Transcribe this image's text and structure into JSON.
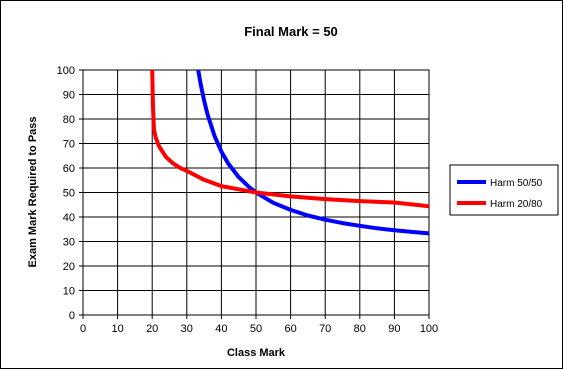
{
  "chart_data": {
    "type": "line",
    "title": "Final Mark = 50",
    "xlabel": "Class Mark",
    "ylabel": "Exam Mark Required to Pass",
    "xlim": [
      0,
      100
    ],
    "ylim": [
      0,
      100
    ],
    "xticks": [
      0,
      10,
      20,
      30,
      40,
      50,
      60,
      70,
      80,
      90,
      100
    ],
    "yticks": [
      0,
      10,
      20,
      30,
      40,
      50,
      60,
      70,
      80,
      90,
      100
    ],
    "grid": true,
    "legend_position": "right",
    "series": [
      {
        "name": "Harm 50/50",
        "color": "#0000ff",
        "points": [
          [
            33.3,
            100
          ],
          [
            34,
            94.4
          ],
          [
            35,
            87.5
          ],
          [
            36,
            81.8
          ],
          [
            38,
            73.1
          ],
          [
            40,
            66.7
          ],
          [
            42,
            61.8
          ],
          [
            45,
            56.3
          ],
          [
            48,
            52.2
          ],
          [
            50,
            50
          ],
          [
            55,
            45.8
          ],
          [
            60,
            42.9
          ],
          [
            65,
            40.6
          ],
          [
            70,
            38.9
          ],
          [
            75,
            37.5
          ],
          [
            80,
            36.4
          ],
          [
            85,
            35.4
          ],
          [
            90,
            34.6
          ],
          [
            95,
            33.9
          ],
          [
            100,
            33.3
          ]
        ]
      },
      {
        "name": "Harm 20/80",
        "color": "#ff0000",
        "points": [
          [
            20,
            100
          ],
          [
            20.2,
            86
          ],
          [
            20.5,
            76
          ],
          [
            21,
            72.4
          ],
          [
            22,
            68.8
          ],
          [
            24,
            64.5
          ],
          [
            26,
            61.9
          ],
          [
            28,
            60.1
          ],
          [
            30,
            58.8
          ],
          [
            35,
            55.2
          ],
          [
            40,
            52.6
          ],
          [
            45,
            51.3
          ],
          [
            50,
            50
          ],
          [
            60,
            48.4
          ],
          [
            70,
            47.3
          ],
          [
            80,
            46.5
          ],
          [
            90,
            45.9
          ],
          [
            100,
            44.4
          ]
        ]
      }
    ]
  }
}
